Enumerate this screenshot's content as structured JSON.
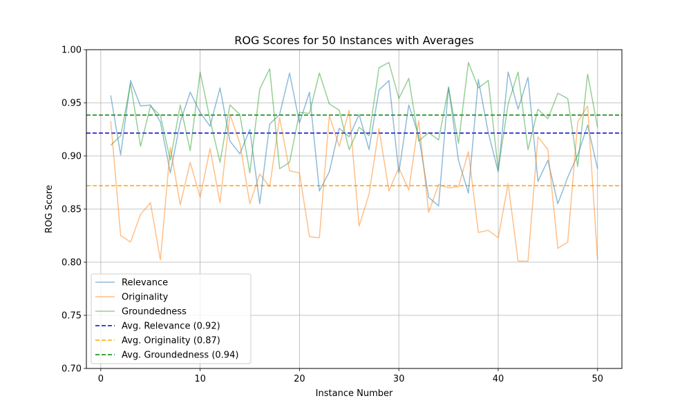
{
  "chart_data": {
    "type": "line",
    "title": "ROG Scores for 50 Instances with Averages",
    "xlabel": "Instance Number",
    "ylabel": "ROG Score",
    "xlim": [
      -1.45,
      52.45
    ],
    "ylim": [
      0.7,
      1.0
    ],
    "xticks": [
      0,
      10,
      20,
      30,
      40,
      50
    ],
    "yticks": [
      0.7,
      0.75,
      0.8,
      0.85,
      0.9,
      0.95,
      1.0
    ],
    "ytick_labels": [
      "0.70",
      "0.75",
      "0.80",
      "0.85",
      "0.90",
      "0.95",
      "1.00"
    ],
    "grid": true,
    "legend_position": "lower-left",
    "x": [
      1,
      2,
      3,
      4,
      5,
      6,
      7,
      8,
      9,
      10,
      11,
      12,
      13,
      14,
      15,
      16,
      17,
      18,
      19,
      20,
      21,
      22,
      23,
      24,
      25,
      26,
      27,
      28,
      29,
      30,
      31,
      32,
      33,
      34,
      35,
      36,
      37,
      38,
      39,
      40,
      41,
      42,
      43,
      44,
      45,
      46,
      47,
      48,
      49,
      50
    ],
    "series": [
      {
        "name": "Relevance",
        "color": "#1f77b4",
        "values": [
          0.957,
          0.901,
          0.971,
          0.947,
          0.948,
          0.932,
          0.884,
          0.932,
          0.96,
          0.941,
          0.928,
          0.964,
          0.914,
          0.902,
          0.925,
          0.855,
          0.93,
          0.939,
          0.978,
          0.931,
          0.96,
          0.867,
          0.885,
          0.926,
          0.918,
          0.939,
          0.906,
          0.962,
          0.971,
          0.884,
          0.948,
          0.919,
          0.861,
          0.853,
          0.965,
          0.896,
          0.865,
          0.972,
          0.922,
          0.885,
          0.979,
          0.944,
          0.974,
          0.876,
          0.896,
          0.855,
          0.88,
          0.901,
          0.929,
          0.888
        ]
      },
      {
        "name": "Originality",
        "color": "#ff7f0e",
        "values": [
          0.933,
          0.825,
          0.819,
          0.845,
          0.856,
          0.802,
          0.908,
          0.854,
          0.894,
          0.861,
          0.907,
          0.856,
          0.939,
          0.912,
          0.855,
          0.883,
          0.871,
          0.936,
          0.886,
          0.884,
          0.824,
          0.823,
          0.938,
          0.909,
          0.943,
          0.834,
          0.864,
          0.926,
          0.867,
          0.889,
          0.868,
          0.933,
          0.847,
          0.873,
          0.87,
          0.871,
          0.904,
          0.828,
          0.83,
          0.823,
          0.874,
          0.801,
          0.801,
          0.918,
          0.906,
          0.813,
          0.819,
          0.932,
          0.947,
          0.802
        ]
      },
      {
        "name": "Groundedness",
        "color": "#2ca02c",
        "values": [
          0.91,
          0.919,
          0.968,
          0.909,
          0.947,
          0.938,
          0.896,
          0.948,
          0.905,
          0.979,
          0.934,
          0.894,
          0.948,
          0.939,
          0.884,
          0.963,
          0.982,
          0.888,
          0.894,
          0.941,
          0.94,
          0.978,
          0.949,
          0.943,
          0.906,
          0.927,
          0.919,
          0.983,
          0.988,
          0.954,
          0.973,
          0.914,
          0.922,
          0.915,
          0.964,
          0.912,
          0.988,
          0.964,
          0.971,
          0.887,
          0.949,
          0.979,
          0.906,
          0.944,
          0.935,
          0.959,
          0.954,
          0.89,
          0.977,
          0.927
        ]
      }
    ],
    "averages": [
      {
        "name": "Avg. Relevance (0.92)",
        "value": 0.9215,
        "color": "#0000cd"
      },
      {
        "name": "Avg. Originality (0.87)",
        "value": 0.872,
        "color": "#ffa500"
      },
      {
        "name": "Avg. Groundedness (0.94)",
        "value": 0.9385,
        "color": "#008000"
      }
    ]
  }
}
